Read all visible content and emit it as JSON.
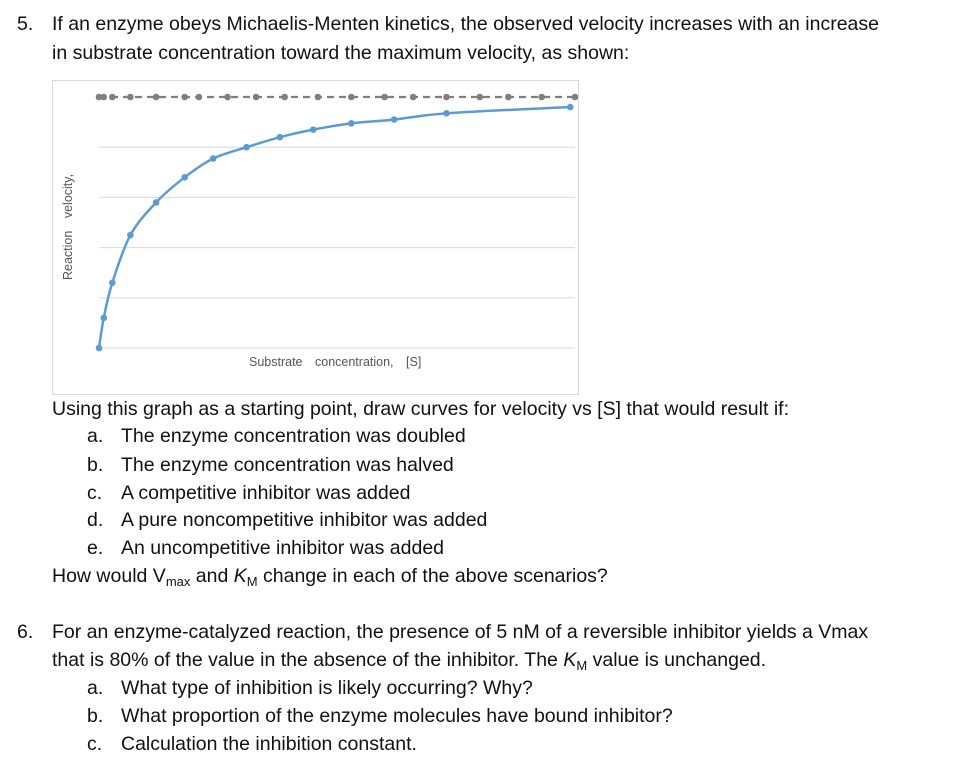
{
  "q5": {
    "number": "5.",
    "line1": "If an enzyme obeys Michaelis-Menten kinetics, the observed velocity increases with an increase",
    "line2": "in substrate concentration toward the maximum velocity, as shown:",
    "after_graph": "Using this graph as a starting point, draw curves for velocity vs [S] that would result if:",
    "items": [
      {
        "marker": "a.",
        "text": "The enzyme concentration was doubled"
      },
      {
        "marker": "b.",
        "text": "The enzyme concentration was halved"
      },
      {
        "marker": "c.",
        "text": "A competitive inhibitor was added"
      },
      {
        "marker": "d.",
        "text": "A pure noncompetitive inhibitor was added"
      },
      {
        "marker": "e.",
        "text": "An uncompetitive inhibitor was added"
      }
    ],
    "closing_pre": "How would V",
    "closing_sub1": "max",
    "closing_mid": " and ",
    "closing_k": "K",
    "closing_sub2": "M",
    "closing_post": " change in each of the above scenarios?"
  },
  "q6": {
    "number": "6.",
    "line1": "For an enzyme-catalyzed reaction, the presence of 5 nM of a reversible inhibitor yields a Vmax",
    "line2_pre": "that is 80% of the value in the absence of the inhibitor. The ",
    "line2_k": "K",
    "line2_sub": "M",
    "line2_post": " value is unchanged.",
    "items": [
      {
        "marker": "a.",
        "text": "What type of inhibition is likely occurring? Why?"
      },
      {
        "marker": "b.",
        "text": "What proportion of the enzyme molecules have bound inhibitor?"
      },
      {
        "marker": "c.",
        "text": "Calculation the inhibition constant."
      }
    ]
  },
  "chart_data": {
    "type": "scatter",
    "xlabel": "Substrate concentration, [S]",
    "ylabel": "Reaction velocity, ",
    "grid": true,
    "series": [
      {
        "style": "dashed-markers",
        "color": "#7f7f7f",
        "x": [
          0.0,
          0.01,
          0.028,
          0.066,
          0.12,
          0.18,
          0.21,
          0.27,
          0.33,
          0.39,
          0.46,
          0.53,
          0.6,
          0.66,
          0.73,
          0.8,
          0.86,
          0.93,
          1.0
        ],
        "y": [
          1.0,
          1.0,
          1.0,
          1.0,
          1.0,
          1.0,
          1.0,
          1.0,
          1.0,
          1.0,
          1.0,
          1.0,
          1.0,
          1.0,
          1.0,
          1.0,
          1.0,
          1.0,
          1.0
        ]
      },
      {
        "style": "smooth-line-markers",
        "color": "#5b9bd5",
        "x": [
          0.0,
          0.01,
          0.028,
          0.066,
          0.12,
          0.18,
          0.24,
          0.31,
          0.38,
          0.45,
          0.53,
          0.62,
          0.73,
          0.99
        ],
        "y": [
          0.0,
          0.12,
          0.26,
          0.45,
          0.58,
          0.68,
          0.755,
          0.8,
          0.84,
          0.87,
          0.895,
          0.91,
          0.935,
          0.96
        ]
      }
    ]
  }
}
